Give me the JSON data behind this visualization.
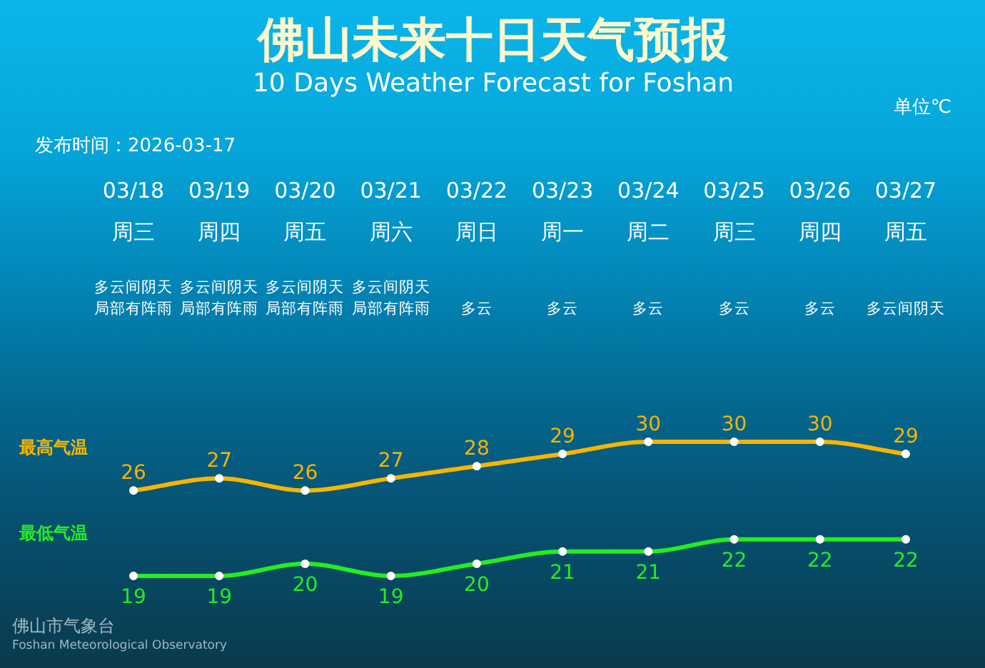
{
  "chart_data": {
    "type": "line",
    "title": "佛山未来十日天气预报",
    "subtitle": "10 Days Weather Forecast for Foshan",
    "annotations": [
      "单位℃",
      "发布时间：2026-03-17",
      "多云间阴天局部有阵雨",
      "多云间阴天局部有阵雨",
      "多云间阴天局部有阵雨",
      "多云间阴天局部有阵雨",
      "多云",
      "多云",
      "多云",
      "多云",
      "多云",
      "多云间阴天",
      "佛山市气象台",
      "Foshan Meteorological Observatory"
    ],
    "categories": [
      "03/18\n周三",
      "03/19\n周四",
      "03/20\n周五",
      "03/21\n周六",
      "03/22\n周日",
      "03/23\n周一",
      "03/24\n周二",
      "03/25\n周三",
      "03/26\n周四",
      "03/27\n周五"
    ],
    "series": [
      {
        "name": "最高气温",
        "color": "#f7b500",
        "values": [
          26,
          27,
          26,
          27,
          28,
          29,
          30,
          30,
          30,
          29
        ]
      },
      {
        "name": "最低气温",
        "color": "#22ee22",
        "values": [
          19,
          19,
          20,
          19,
          20,
          21,
          21,
          22,
          22,
          22
        ]
      }
    ],
    "data_labels": true,
    "marker": "circle",
    "line_style": "solid"
  }
}
